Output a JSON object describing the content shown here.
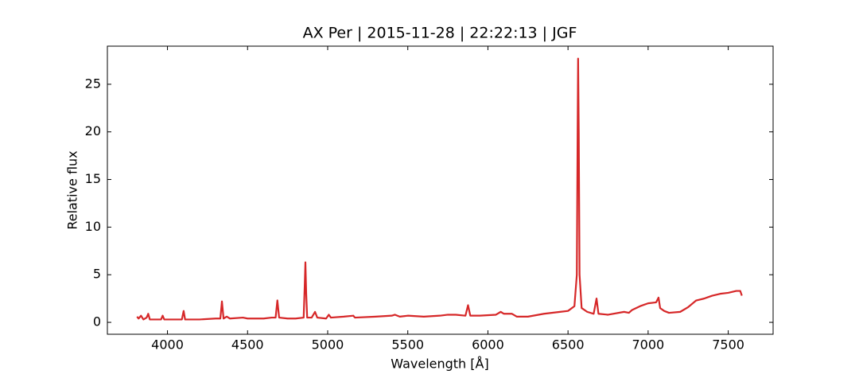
{
  "chart_data": {
    "type": "line",
    "title": "AX Per | 2015-11-28 | 22:22:13 | JGF",
    "x_label": "Wavelength [Å]",
    "y_label": "Relative flux",
    "xlim": [
      3625,
      7780
    ],
    "ylim": [
      -1.25,
      29
    ],
    "xticks": [
      4000,
      4500,
      5000,
      5500,
      6000,
      6500,
      7000,
      7500
    ],
    "yticks": [
      0,
      5,
      10,
      15,
      20,
      25
    ],
    "grid": false,
    "series": [
      {
        "color": "#d62728",
        "x": [
          3810,
          3820,
          3835,
          3850,
          3870,
          3880,
          3890,
          3920,
          3960,
          3970,
          3980,
          4050,
          4090,
          4101,
          4110,
          4200,
          4300,
          4330,
          4340,
          4350,
          4370,
          4390,
          4471,
          4500,
          4600,
          4650,
          4675,
          4686,
          4697,
          4750,
          4800,
          4850,
          4857,
          4861,
          4866,
          4872,
          4900,
          4921,
          4935,
          4990,
          5007,
          5020,
          5100,
          5160,
          5170,
          5300,
          5400,
          5420,
          5450,
          5500,
          5600,
          5700,
          5750,
          5800,
          5860,
          5876,
          5890,
          5950,
          6050,
          6080,
          6100,
          6150,
          6180,
          6250,
          6350,
          6450,
          6500,
          6540,
          6555,
          6560,
          6563,
          6567,
          6572,
          6585,
          6620,
          6660,
          6678,
          6690,
          6750,
          6850,
          6880,
          6900,
          6950,
          7000,
          7050,
          7065,
          7075,
          7100,
          7130,
          7200,
          7250,
          7300,
          7350,
          7400,
          7450,
          7500,
          7550,
          7575,
          7585
        ],
        "values": [
          0.6,
          0.4,
          0.7,
          0.3,
          0.5,
          0.9,
          0.3,
          0.3,
          0.3,
          0.7,
          0.3,
          0.3,
          0.3,
          1.2,
          0.3,
          0.3,
          0.4,
          0.4,
          2.2,
          0.4,
          0.6,
          0.4,
          0.5,
          0.4,
          0.4,
          0.5,
          0.5,
          2.3,
          0.5,
          0.4,
          0.4,
          0.5,
          4.0,
          6.3,
          3.0,
          0.5,
          0.5,
          1.1,
          0.5,
          0.4,
          0.8,
          0.5,
          0.6,
          0.7,
          0.5,
          0.6,
          0.7,
          0.8,
          0.6,
          0.7,
          0.6,
          0.7,
          0.8,
          0.8,
          0.7,
          1.8,
          0.7,
          0.7,
          0.8,
          1.1,
          0.9,
          0.9,
          0.6,
          0.6,
          0.9,
          1.1,
          1.2,
          1.7,
          5,
          20,
          27.7,
          20,
          5,
          1.5,
          1.1,
          0.9,
          2.5,
          0.9,
          0.8,
          1.1,
          1.0,
          1.3,
          1.7,
          2.0,
          2.1,
          2.6,
          1.5,
          1.2,
          1.0,
          1.1,
          1.6,
          2.3,
          2.5,
          2.8,
          3.0,
          3.1,
          3.3,
          3.3,
          2.8
        ]
      }
    ]
  }
}
